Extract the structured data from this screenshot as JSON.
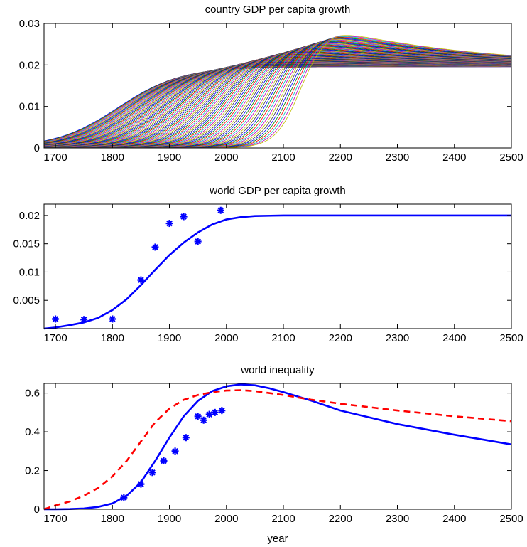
{
  "chart_data": [
    {
      "type": "line",
      "title": "country GDP per capita growth",
      "xlabel": "",
      "ylabel": "",
      "xlim": [
        1680,
        2500
      ],
      "ylim": [
        0,
        0.03
      ],
      "xticks": [
        "1700",
        "1800",
        "1900",
        "2000",
        "2100",
        "2200",
        "2300",
        "2400",
        "2500"
      ],
      "yticks": [
        "0",
        "0.01",
        "0.02",
        "0.03"
      ],
      "grid": false,
      "series_count": 90,
      "series_description": "logistic growth curves, one per country, rising from ~0 to ~0.02-0.028 with take-off years spread between ~1800 and ~2150, then settling toward ~0.02",
      "colors": [
        "#0000ff",
        "#008000",
        "#ff0000",
        "#00bfbf",
        "#bf00bf",
        "#bfbf00",
        "#404040"
      ]
    },
    {
      "type": "line",
      "title": "world GDP per capita growth",
      "xlabel": "",
      "ylabel": "",
      "xlim": [
        1680,
        2500
      ],
      "ylim": [
        0,
        0.022
      ],
      "xticks": [
        "1700",
        "1800",
        "1900",
        "2000",
        "2100",
        "2200",
        "2300",
        "2400",
        "2500"
      ],
      "yticks": [
        "0.005",
        "0.01",
        "0.015",
        "0.02"
      ],
      "grid": false,
      "series": [
        {
          "style": "line",
          "color": "#0000ff",
          "x": [
            1680,
            1700,
            1725,
            1750,
            1775,
            1800,
            1825,
            1850,
            1875,
            1900,
            1925,
            1950,
            1975,
            2000,
            2025,
            2050,
            2100,
            2150,
            2200,
            2300,
            2400,
            2500
          ],
          "y": [
            0.0,
            0.0002,
            0.0006,
            0.0011,
            0.0019,
            0.0033,
            0.0052,
            0.0077,
            0.0104,
            0.013,
            0.0152,
            0.017,
            0.0184,
            0.0193,
            0.0197,
            0.0199,
            0.02,
            0.02,
            0.02,
            0.02,
            0.02,
            0.02
          ]
        },
        {
          "style": "markers",
          "marker": "*",
          "color": "#0000ff",
          "x": [
            1700,
            1750,
            1800,
            1850,
            1875,
            1900,
            1925,
            1950,
            1990
          ],
          "y": [
            0.0017,
            0.0016,
            0.0017,
            0.0086,
            0.0144,
            0.0186,
            0.0198,
            0.0154,
            0.0209
          ]
        }
      ]
    },
    {
      "type": "line",
      "title": "world inequality",
      "xlabel": "year",
      "ylabel": "",
      "xlim": [
        1680,
        2500
      ],
      "ylim": [
        0,
        0.65
      ],
      "xticks": [
        "1700",
        "1800",
        "1900",
        "2000",
        "2100",
        "2200",
        "2300",
        "2400",
        "2500"
      ],
      "yticks": [
        "0",
        "0.2",
        "0.4",
        "0.6"
      ],
      "grid": false,
      "series": [
        {
          "style": "line",
          "color": "#0000ff",
          "x": [
            1680,
            1700,
            1725,
            1750,
            1775,
            1800,
            1825,
            1850,
            1875,
            1900,
            1925,
            1950,
            1975,
            2000,
            2025,
            2050,
            2075,
            2100,
            2150,
            2200,
            2300,
            2400,
            2500
          ],
          "y": [
            0.0,
            0.0,
            0.001,
            0.004,
            0.012,
            0.03,
            0.07,
            0.14,
            0.25,
            0.37,
            0.48,
            0.56,
            0.61,
            0.635,
            0.645,
            0.64,
            0.625,
            0.605,
            0.56,
            0.51,
            0.44,
            0.385,
            0.335
          ]
        },
        {
          "style": "dashed",
          "color": "#ff0000",
          "x": [
            1680,
            1700,
            1725,
            1750,
            1775,
            1800,
            1825,
            1850,
            1875,
            1900,
            1925,
            1950,
            1975,
            2000,
            2025,
            2050,
            2075,
            2100,
            2150,
            2200,
            2300,
            2400,
            2500
          ],
          "y": [
            0.0,
            0.02,
            0.04,
            0.07,
            0.11,
            0.17,
            0.25,
            0.35,
            0.45,
            0.52,
            0.565,
            0.59,
            0.605,
            0.613,
            0.615,
            0.61,
            0.6,
            0.59,
            0.565,
            0.545,
            0.51,
            0.48,
            0.455
          ]
        },
        {
          "style": "markers",
          "marker": "*",
          "color": "#0000ff",
          "x": [
            1820,
            1850,
            1870,
            1890,
            1910,
            1929,
            1950,
            1960,
            1970,
            1980,
            1992
          ],
          "y": [
            0.06,
            0.13,
            0.19,
            0.25,
            0.3,
            0.37,
            0.48,
            0.46,
            0.49,
            0.5,
            0.51
          ]
        }
      ]
    }
  ]
}
